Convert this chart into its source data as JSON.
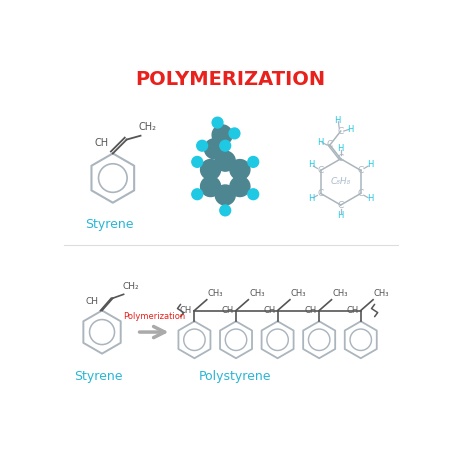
{
  "title": "POLYMERIZATION",
  "title_color": "#e8211d",
  "title_fontsize": 14,
  "bg_color": "#ffffff",
  "styrene_label": "Styrene",
  "polystyrene_label": "Polystyrene",
  "polymerization_label": "Polymerization",
  "c8h8_label": "C₈H₈",
  "ring_color": "#aab5be",
  "bond_color": "#555555",
  "cyan_color": "#1fc8e3",
  "teal_color": "#4d8591",
  "label_color": "#29b6d6",
  "arrow_color": "#aaaaaa",
  "poly_label_color": "#e8211d",
  "text_color": "#555555",
  "ring_lw": 1.4,
  "struct_bond_color": "#aab5be"
}
